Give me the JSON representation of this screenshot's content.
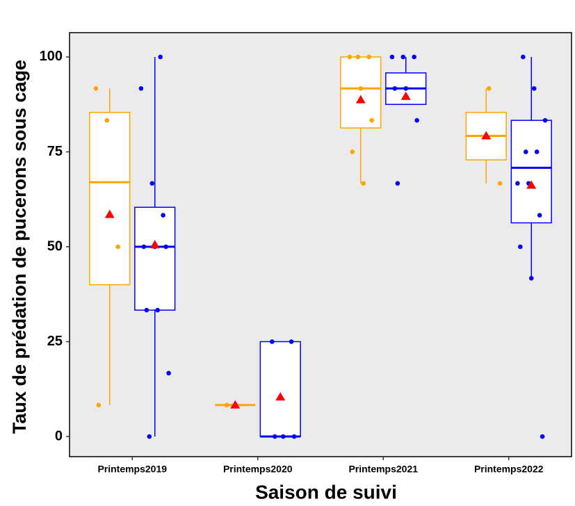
{
  "chart_data": {
    "type": "box",
    "x_label": "Saison de suivi",
    "y_label": "Taux de prédation de pucerons sous cage",
    "categories": [
      "Printemps2019",
      "Printemps2020",
      "Printemps2021",
      "Printemps2022"
    ],
    "ylim": [
      -5.3,
      106.4
    ],
    "yticks": [
      0,
      25,
      50,
      75,
      100
    ],
    "mean_color": "#ff0000",
    "panel_color": "#ebebeb",
    "series": [
      {
        "color": "#ffa500",
        "boxes": [
          {
            "min": 8.3,
            "q1": 40,
            "median": 67,
            "q3": 85.4,
            "max": 91.7,
            "mean": 58.5,
            "points": [
              91.7,
              83.3,
              50,
              8.3
            ]
          },
          {
            "min": 8.3,
            "q1": 8.3,
            "median": 8.3,
            "q3": 8.3,
            "max": 8.3,
            "mean": 8.3,
            "points": [
              8.3
            ]
          },
          {
            "min": 66.7,
            "q1": 81.3,
            "median": 91.7,
            "q3": 100,
            "max": 100,
            "mean": 88.7,
            "points": [
              100,
              100,
              100,
              91.7,
              83.3,
              75,
              66.7
            ]
          },
          {
            "min": 66.7,
            "q1": 72.9,
            "median": 79.2,
            "q3": 85.4,
            "max": 91.7,
            "mean": 79.2,
            "points": [
              91.7,
              66.7
            ]
          }
        ]
      },
      {
        "color": "#0000ff",
        "boxes": [
          {
            "min": 0,
            "q1": 33.3,
            "median": 50,
            "q3": 60.4,
            "max": 100,
            "mean": 50.5,
            "points": [
              100,
              91.7,
              66.7,
              58.3,
              50,
              50,
              50,
              33.3,
              33.3,
              16.7,
              0
            ]
          },
          {
            "min": 0,
            "q1": 0,
            "median": 0,
            "q3": 25,
            "max": 25,
            "mean": 10.4,
            "points": [
              25,
              25,
              0,
              0,
              0
            ]
          },
          {
            "min": 87.5,
            "q1": 87.5,
            "median": 91.7,
            "q3": 95.8,
            "max": 100,
            "mean": 89.6,
            "points": [
              100,
              100,
              100,
              91.7,
              91.7,
              83.3,
              66.7
            ]
          },
          {
            "min": 41.7,
            "q1": 56.3,
            "median": 70.8,
            "q3": 83.3,
            "max": 100,
            "mean": 66.2,
            "points": [
              100,
              91.7,
              83.3,
              75,
              75,
              66.7,
              66.7,
              58.3,
              50,
              41.7,
              0
            ]
          }
        ]
      }
    ]
  }
}
